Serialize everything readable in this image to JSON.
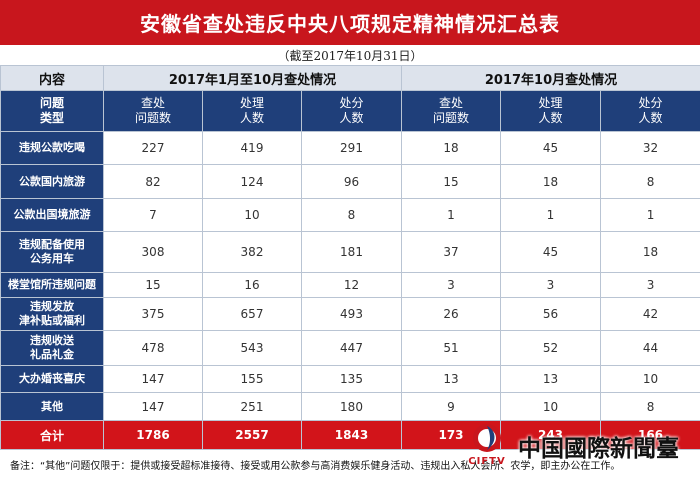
{
  "title": "安徽省查处违反中央八项规定精神情况汇总表",
  "subtitle": "（截至2017年10月31日）",
  "table": {
    "corner_label": "内容",
    "group_headers": [
      "2017年1月至10月查处情况",
      "2017年10月查处情况"
    ],
    "row_header_label": [
      "问题",
      "类型"
    ],
    "sub_headers": [
      [
        "查处",
        "问题数"
      ],
      [
        "处理",
        "人数"
      ],
      [
        "处分",
        "人数"
      ],
      [
        "查处",
        "问题数"
      ],
      [
        "处理",
        "人数"
      ],
      [
        "处分",
        "人数"
      ]
    ],
    "rows": [
      {
        "label": [
          "违规公款吃喝"
        ],
        "values": [
          "227",
          "419",
          "291",
          "18",
          "45",
          "32"
        ]
      },
      {
        "label": [
          "公款国内旅游"
        ],
        "values": [
          "82",
          "124",
          "96",
          "15",
          "18",
          "8"
        ]
      },
      {
        "label": [
          "公款出国境旅游"
        ],
        "values": [
          "7",
          "10",
          "8",
          "1",
          "1",
          "1"
        ]
      },
      {
        "label": [
          "违规配备使用",
          "公务用车"
        ],
        "values": [
          "308",
          "382",
          "181",
          "37",
          "45",
          "18"
        ]
      },
      {
        "label": [
          "楼堂馆所违规问题"
        ],
        "values": [
          "15",
          "16",
          "12",
          "3",
          "3",
          "3"
        ]
      },
      {
        "label": [
          "违规发放",
          "津补贴或福利"
        ],
        "values": [
          "375",
          "657",
          "493",
          "26",
          "56",
          "42"
        ]
      },
      {
        "label": [
          "违规收送",
          "礼品礼金"
        ],
        "values": [
          "478",
          "543",
          "447",
          "51",
          "52",
          "44"
        ]
      },
      {
        "label": [
          "大办婚丧喜庆"
        ],
        "values": [
          "147",
          "155",
          "135",
          "13",
          "13",
          "10"
        ]
      },
      {
        "label": [
          "其他"
        ],
        "values": [
          "147",
          "251",
          "180",
          "9",
          "10",
          "8"
        ]
      }
    ],
    "total": {
      "label": "合计",
      "values": [
        "1786",
        "2557",
        "1843",
        "173",
        "243",
        "166"
      ]
    }
  },
  "note": "备注：“其他”问题仅限于：提供或接受超标准接待、接受或用公款参与高消费娱乐健身活动、违规出入私人会所、农学，即主办公在工作。",
  "watermark": {
    "brand": "中国國際新聞臺",
    "logo_text": "CIFTV"
  },
  "colors": {
    "title_red": "#c8161d",
    "header_navy": "#1f3f7a",
    "total_red": "#d2141a",
    "header_gray": "#dde3ec"
  }
}
